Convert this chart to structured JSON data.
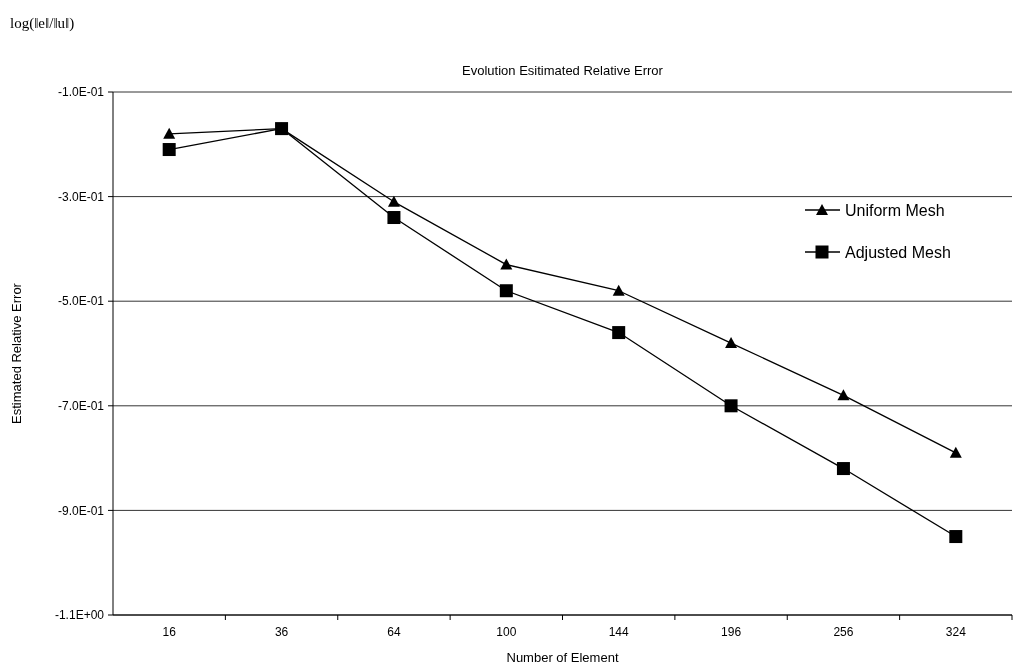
{
  "chart_data": {
    "type": "line",
    "title": "Evolution Esitimated Relative Error",
    "xlabel": "Number of Element",
    "ylabel": "Estimated Relative Error",
    "annotations": [
      "log(‖e‖/‖u‖)"
    ],
    "categories": [
      "16",
      "36",
      "64",
      "100",
      "144",
      "196",
      "256",
      "324"
    ],
    "series": [
      {
        "name": "Uniform Mesh",
        "color": "#000000",
        "marker": "triangle",
        "values": [
          -0.18,
          -0.17,
          -0.31,
          -0.43,
          -0.48,
          -0.58,
          -0.68,
          -0.79
        ]
      },
      {
        "name": "Adjusted Mesh",
        "color": "#000000",
        "marker": "square",
        "values": [
          -0.21,
          -0.17,
          -0.34,
          -0.48,
          -0.56,
          -0.7,
          -0.82,
          -0.95
        ]
      }
    ],
    "ylim": [
      -1.1,
      -0.1
    ],
    "yticks": [
      {
        "value": -0.1,
        "label": "-1.0E-01"
      },
      {
        "value": -0.3,
        "label": "-3.0E-01"
      },
      {
        "value": -0.5,
        "label": "-5.0E-01"
      },
      {
        "value": -0.7,
        "label": "-7.0E-01"
      },
      {
        "value": -0.9,
        "label": "-9.0E-01"
      },
      {
        "value": -1.1,
        "label": "-1.1E+00"
      }
    ],
    "grid": "y",
    "legend": "right",
    "line_style": "solid"
  }
}
